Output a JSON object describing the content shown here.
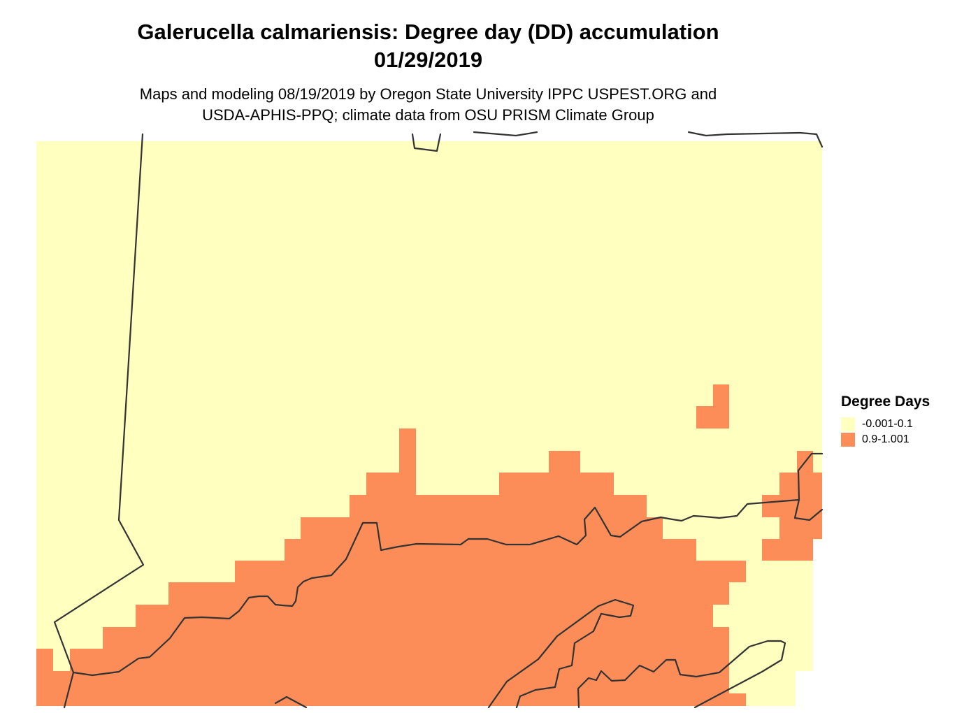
{
  "title_line1": "Galerucella calmariensis: Degree day (DD) accumulation",
  "title_line2": "01/29/2019",
  "subtitle_line1": "Maps and modeling 08/19/2019 by Oregon State University IPPC USPEST.ORG and",
  "subtitle_line2": "USDA-APHIS-PPQ; climate data from OSU PRISM Climate Group",
  "legend": {
    "title": "Degree Days",
    "items": [
      {
        "label": "-0.001-0.1",
        "color": "#FFFFC0"
      },
      {
        "label": "0.9-1.001",
        "color": "#FC8D59"
      }
    ]
  },
  "colors": {
    "low": "#FFFFC0",
    "high": "#FC8D59",
    "boundary": "#333333"
  }
}
